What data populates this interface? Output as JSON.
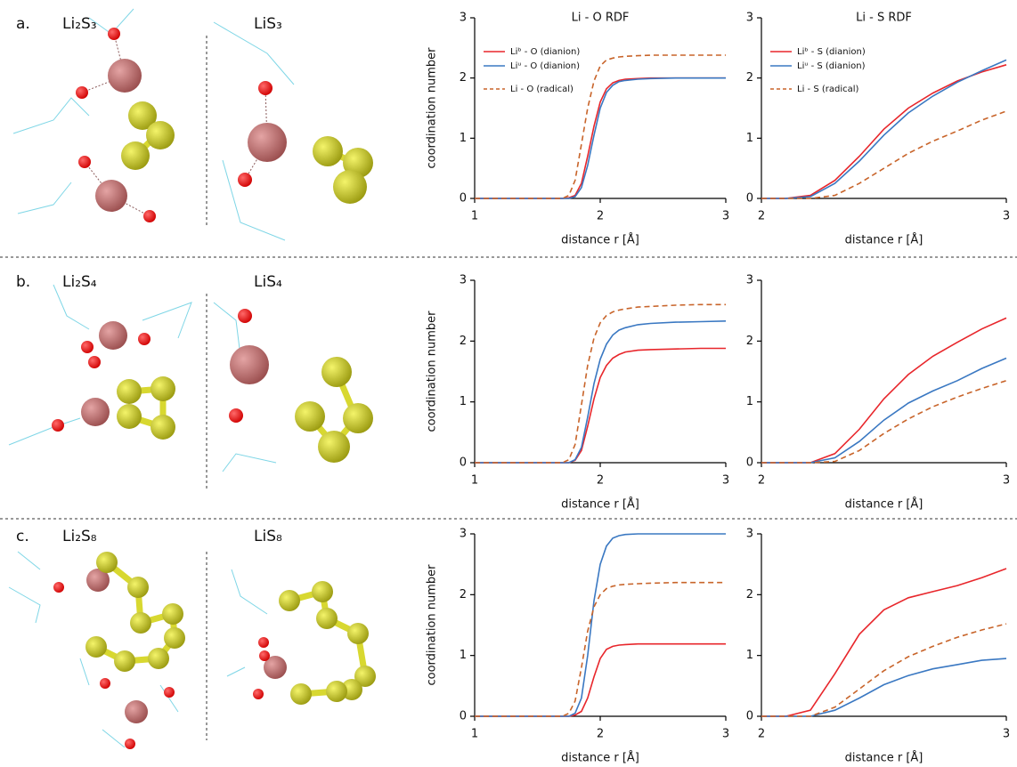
{
  "panels": [
    {
      "label": "a.",
      "left": "Li₂S₃",
      "right": "LiS₃"
    },
    {
      "label": "b.",
      "left": "Li₂S₄",
      "right": "LiS₄"
    },
    {
      "label": "c.",
      "left": "Li₂S₈",
      "right": "LiS₈"
    }
  ],
  "chart_data": [
    {
      "type": "line",
      "title": "Li - O RDF",
      "xlabel": "distance r [Å]",
      "ylabel": "coordination number",
      "legend": "upper left",
      "x": [
        1,
        1.5,
        1.7,
        1.75,
        1.8,
        1.85,
        1.9,
        1.95,
        2,
        2.05,
        2.1,
        2.15,
        2.2,
        2.3,
        2.4,
        2.6,
        2.8,
        3
      ],
      "xlim": [
        1,
        3
      ],
      "xticks": [
        1,
        2,
        3
      ],
      "ylim": [
        0,
        3
      ],
      "yticks": [
        0,
        1,
        2,
        3
      ],
      "series": [
        {
          "name": "Liᵇ - O (dianion)",
          "color": "#e8262b",
          "style": "solid",
          "values": [
            0,
            0,
            0,
            0.01,
            0.05,
            0.25,
            0.7,
            1.2,
            1.6,
            1.82,
            1.92,
            1.96,
            1.98,
            1.99,
            2,
            2,
            2,
            2
          ]
        },
        {
          "name": "Liᵘ - O (dianion)",
          "color": "#3a78c2",
          "style": "solid",
          "values": [
            0,
            0,
            0,
            0,
            0.03,
            0.18,
            0.55,
            1.05,
            1.5,
            1.76,
            1.88,
            1.94,
            1.96,
            1.98,
            1.99,
            2,
            2,
            2
          ]
        },
        {
          "name": "Li - O (radical)",
          "color": "#c8642a",
          "style": "dashed",
          "values": [
            0,
            0,
            0,
            0.05,
            0.3,
            0.9,
            1.5,
            1.95,
            2.2,
            2.3,
            2.33,
            2.35,
            2.36,
            2.37,
            2.38,
            2.38,
            2.38,
            2.38
          ]
        }
      ]
    },
    {
      "type": "line",
      "title": "Li - S RDF",
      "xlabel": "distance r [Å]",
      "legend": "upper left",
      "x": [
        2,
        2.1,
        2.2,
        2.3,
        2.4,
        2.5,
        2.6,
        2.7,
        2.8,
        2.9,
        3
      ],
      "xlim": [
        2,
        3
      ],
      "xticks": [
        2,
        3
      ],
      "ylim": [
        0,
        3
      ],
      "yticks": [
        0,
        1,
        2,
        3
      ],
      "series": [
        {
          "name": "Liᵇ - S (dianion)",
          "color": "#e8262b",
          "style": "solid",
          "values": [
            0,
            0,
            0.05,
            0.3,
            0.7,
            1.15,
            1.5,
            1.75,
            1.95,
            2.1,
            2.22
          ]
        },
        {
          "name": "Liᵘ - S (dianion)",
          "color": "#3a78c2",
          "style": "solid",
          "values": [
            0,
            0,
            0.03,
            0.25,
            0.62,
            1.05,
            1.42,
            1.7,
            1.93,
            2.12,
            2.3
          ]
        },
        {
          "name": "Li - S (radical)",
          "color": "#c8642a",
          "style": "dashed",
          "values": [
            0,
            0,
            0,
            0.05,
            0.25,
            0.5,
            0.75,
            0.95,
            1.12,
            1.3,
            1.45
          ]
        }
      ]
    },
    {
      "type": "line",
      "xlabel": "distance r [Å]",
      "ylabel": "coordination number",
      "x": [
        1,
        1.5,
        1.7,
        1.75,
        1.8,
        1.85,
        1.9,
        1.95,
        2,
        2.05,
        2.1,
        2.15,
        2.2,
        2.3,
        2.4,
        2.6,
        2.8,
        3
      ],
      "xlim": [
        1,
        3
      ],
      "xticks": [
        1,
        2,
        3
      ],
      "ylim": [
        0,
        3
      ],
      "yticks": [
        0,
        1,
        2,
        3
      ],
      "series": [
        {
          "color": "#e8262b",
          "style": "solid",
          "values": [
            0,
            0,
            0,
            0,
            0.04,
            0.2,
            0.6,
            1.05,
            1.4,
            1.6,
            1.72,
            1.78,
            1.82,
            1.85,
            1.86,
            1.87,
            1.88,
            1.88
          ]
        },
        {
          "color": "#3a78c2",
          "style": "solid",
          "values": [
            0,
            0,
            0,
            0,
            0.05,
            0.25,
            0.75,
            1.3,
            1.7,
            1.95,
            2.1,
            2.18,
            2.22,
            2.27,
            2.29,
            2.31,
            2.32,
            2.33
          ]
        },
        {
          "color": "#c8642a",
          "style": "dashed",
          "values": [
            0,
            0,
            0,
            0.05,
            0.3,
            0.95,
            1.6,
            2.05,
            2.3,
            2.42,
            2.48,
            2.51,
            2.53,
            2.56,
            2.57,
            2.59,
            2.6,
            2.6
          ]
        }
      ]
    },
    {
      "type": "line",
      "xlabel": "distance r [Å]",
      "x": [
        2,
        2.1,
        2.2,
        2.3,
        2.4,
        2.5,
        2.6,
        2.7,
        2.8,
        2.9,
        3
      ],
      "xlim": [
        2,
        3
      ],
      "xticks": [
        2,
        3
      ],
      "ylim": [
        0,
        3
      ],
      "yticks": [
        0,
        1,
        2,
        3
      ],
      "series": [
        {
          "color": "#e8262b",
          "style": "solid",
          "values": [
            0,
            0,
            0,
            0.15,
            0.55,
            1.05,
            1.45,
            1.75,
            1.98,
            2.2,
            2.38
          ]
        },
        {
          "color": "#3a78c2",
          "style": "solid",
          "values": [
            0,
            0,
            0,
            0.08,
            0.35,
            0.7,
            0.98,
            1.18,
            1.35,
            1.55,
            1.72
          ]
        },
        {
          "color": "#c8642a",
          "style": "dashed",
          "values": [
            0,
            0,
            0,
            0.02,
            0.2,
            0.48,
            0.72,
            0.92,
            1.08,
            1.22,
            1.35
          ]
        }
      ]
    },
    {
      "type": "line",
      "xlabel": "distance r [Å]",
      "ylabel": "coordination number",
      "x": [
        1,
        1.5,
        1.7,
        1.75,
        1.8,
        1.85,
        1.9,
        1.95,
        2,
        2.05,
        2.1,
        2.15,
        2.2,
        2.3,
        2.4,
        2.6,
        2.8,
        3
      ],
      "xlim": [
        1,
        3
      ],
      "xticks": [
        1,
        2,
        3
      ],
      "ylim": [
        0,
        3
      ],
      "yticks": [
        0,
        1,
        2,
        3
      ],
      "series": [
        {
          "color": "#e8262b",
          "style": "solid",
          "values": [
            0,
            0,
            0,
            0,
            0.02,
            0.08,
            0.3,
            0.65,
            0.95,
            1.1,
            1.15,
            1.17,
            1.18,
            1.19,
            1.19,
            1.19,
            1.19,
            1.19
          ]
        },
        {
          "color": "#3a78c2",
          "style": "solid",
          "values": [
            0,
            0,
            0,
            0,
            0.05,
            0.3,
            1.0,
            1.9,
            2.5,
            2.8,
            2.93,
            2.97,
            2.99,
            3,
            3,
            3,
            3,
            3
          ]
        },
        {
          "color": "#c8642a",
          "style": "dashed",
          "values": [
            0,
            0,
            0,
            0.05,
            0.25,
            0.8,
            1.4,
            1.8,
            2.0,
            2.1,
            2.14,
            2.16,
            2.17,
            2.18,
            2.19,
            2.2,
            2.2,
            2.2
          ]
        }
      ]
    },
    {
      "type": "line",
      "xlabel": "distance r [Å]",
      "x": [
        2,
        2.1,
        2.2,
        2.3,
        2.4,
        2.5,
        2.6,
        2.7,
        2.8,
        2.9,
        3
      ],
      "xlim": [
        2,
        3
      ],
      "xticks": [
        2,
        3
      ],
      "ylim": [
        0,
        3
      ],
      "yticks": [
        0,
        1,
        2,
        3
      ],
      "series": [
        {
          "color": "#e8262b",
          "style": "solid",
          "values": [
            0,
            0,
            0.1,
            0.7,
            1.35,
            1.75,
            1.95,
            2.05,
            2.15,
            2.28,
            2.43
          ]
        },
        {
          "color": "#3a78c2",
          "style": "solid",
          "values": [
            0,
            0,
            0,
            0.1,
            0.3,
            0.52,
            0.67,
            0.78,
            0.85,
            0.92,
            0.95
          ]
        },
        {
          "color": "#c8642a",
          "style": "dashed",
          "values": [
            0,
            0,
            0,
            0.15,
            0.45,
            0.75,
            0.98,
            1.15,
            1.3,
            1.42,
            1.52
          ]
        }
      ]
    }
  ]
}
